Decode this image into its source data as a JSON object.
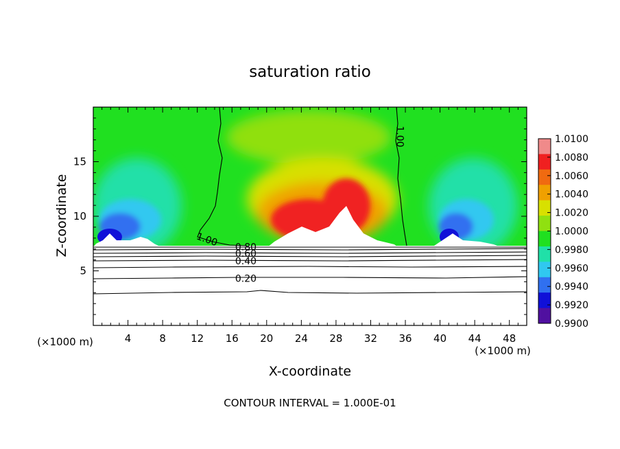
{
  "chart_data": {
    "type": "heatmap",
    "title": "saturation ratio",
    "xlabel": "X-coordinate",
    "ylabel": "Z-coordinate",
    "x_unit_label": "(×1000 m)",
    "y_unit_label": "(×1000 m)",
    "xlim": [
      0,
      50
    ],
    "ylim": [
      0,
      20
    ],
    "x_ticks": [
      4,
      8,
      12,
      16,
      20,
      24,
      28,
      32,
      36,
      40,
      44,
      48
    ],
    "y_ticks": [
      5,
      10,
      15
    ],
    "footer": "CONTOUR INTERVAL = 1.000E-01",
    "colorbar": {
      "levels": [
        "1.0100",
        "1.0080",
        "1.0060",
        "1.0040",
        "1.0020",
        "1.0000",
        "0.9980",
        "0.9960",
        "0.9940",
        "0.9920",
        "0.9900"
      ],
      "colors": [
        "#f08a8a",
        "#f02020",
        "#f06a10",
        "#f0a000",
        "#d8e000",
        "#90e010",
        "#20e020",
        "#20e0a8",
        "#30c8f0",
        "#3070f0",
        "#1010d8",
        "#5010a0"
      ]
    },
    "contour_labels": [
      {
        "text": "1.00",
        "x": 13.0,
        "z": 7.6,
        "rotate": 20
      },
      {
        "text": "1.00",
        "x": 35.0,
        "z": 17.3,
        "rotate": 90
      },
      {
        "text": "0.80",
        "x": 17.6,
        "z": 6.9,
        "rotate": 0
      },
      {
        "text": "0.60",
        "x": 17.6,
        "z": 6.3,
        "rotate": 0
      },
      {
        "text": "0.40",
        "x": 17.6,
        "z": 5.6,
        "rotate": 0
      },
      {
        "text": "0.20",
        "x": 17.6,
        "z": 4.0,
        "rotate": 0
      }
    ],
    "contour_levels": [
      0.2,
      0.4,
      0.6,
      0.8,
      1.0
    ]
  }
}
